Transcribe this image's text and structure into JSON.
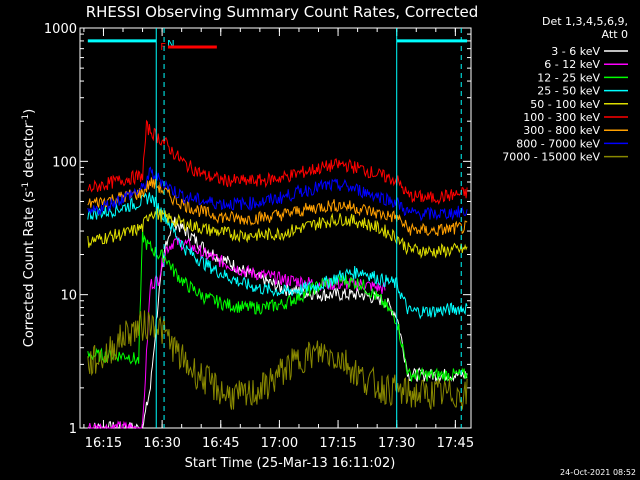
{
  "chart_data": {
    "type": "line",
    "title": "RHESSI Observing Summary Count Rates, Corrected",
    "xlabel": "Start Time (25-Mar-13 16:11:02)",
    "ylabel_main": "Corrected Count Rate (s",
    "ylabel_sup1": "-1",
    "ylabel_mid": " detector",
    "ylabel_sup2": "-1",
    "ylabel_end": ")",
    "x_range_minutes": [
      -2.0,
      98.0
    ],
    "x_tick_labels": [
      "16:15",
      "16:30",
      "16:45",
      "17:00",
      "17:15",
      "17:30",
      "17:45"
    ],
    "x_tick_minutes": [
      4,
      19,
      34,
      49,
      64,
      79,
      94
    ],
    "y_scale": "log",
    "ylim": [
      1,
      1000
    ],
    "y_tick_labels": [
      "1",
      "10",
      "100",
      "1000"
    ],
    "y_tick_values": [
      1,
      10,
      100,
      1000
    ],
    "legend_title_1": "Det 1,3,4,5,6,9,",
    "legend_title_2": "Att 0",
    "legend_placement": "right",
    "series": [
      {
        "name": "3 - 6 keV",
        "color": "#ffffff",
        "x": [
          0,
          10,
          14,
          16,
          18,
          20,
          22,
          25,
          30,
          40,
          50,
          60,
          70,
          76,
          79,
          82,
          90,
          97
        ],
        "y": [
          1,
          1,
          1,
          2,
          9,
          25,
          35,
          30,
          22,
          15,
          11,
          10,
          10,
          9,
          7,
          2.5,
          2.5,
          2.5
        ]
      },
      {
        "name": "6 - 12 keV",
        "color": "#ff00ff",
        "x": [
          0,
          10,
          14,
          16,
          18,
          20,
          22,
          25,
          30,
          40,
          50,
          60,
          70,
          76
        ],
        "y": [
          1,
          1,
          1,
          12,
          13,
          22,
          25,
          24,
          20,
          15,
          13,
          12,
          12,
          11
        ]
      },
      {
        "name": "12 - 25 keV",
        "color": "#00ff00",
        "x": [
          0,
          5,
          10,
          13,
          14,
          15,
          18,
          20,
          22,
          25,
          30,
          35,
          40,
          45,
          50,
          55,
          60,
          65,
          70,
          75,
          79,
          82,
          88,
          97
        ],
        "y": [
          3.5,
          3.5,
          3.5,
          3.2,
          28,
          24,
          20,
          19,
          15,
          12,
          9.5,
          8.5,
          8.0,
          8.0,
          8.5,
          10,
          12,
          13,
          12,
          9,
          6.5,
          2.5,
          2.5,
          2.5
        ]
      },
      {
        "name": "25 - 50 keV",
        "color": "#00ffff",
        "x": [
          0,
          5,
          10,
          14,
          16,
          18,
          20,
          22,
          25,
          30,
          35,
          40,
          45,
          50,
          55,
          60,
          65,
          70,
          75,
          79,
          82,
          88,
          97
        ],
        "y": [
          40,
          42,
          46,
          50,
          55,
          45,
          38,
          30,
          22,
          17,
          14,
          12,
          11,
          10.5,
          11,
          12,
          14,
          15,
          13,
          12,
          7.5,
          7.5,
          8
        ]
      },
      {
        "name": "50 - 100 keV",
        "color": "#dddd00",
        "x": [
          0,
          5,
          10,
          14,
          16,
          18,
          20,
          22,
          25,
          30,
          35,
          40,
          45,
          50,
          55,
          60,
          65,
          70,
          75,
          79,
          82,
          88,
          97
        ],
        "y": [
          25,
          27,
          29,
          32,
          42,
          40,
          38,
          36,
          34,
          31,
          29,
          28,
          28,
          29,
          32,
          35,
          37,
          35,
          31,
          27,
          22,
          21,
          22
        ]
      },
      {
        "name": "100 - 300 keV",
        "color": "#ff0000",
        "x": [
          0,
          5,
          10,
          14,
          15,
          17,
          20,
          22,
          25,
          30,
          35,
          40,
          45,
          50,
          55,
          60,
          65,
          70,
          75,
          79,
          82,
          88,
          97
        ],
        "y": [
          62,
          68,
          74,
          78,
          180,
          160,
          135,
          115,
          95,
          78,
          72,
          71,
          72,
          76,
          83,
          90,
          95,
          88,
          78,
          72,
          55,
          53,
          58
        ]
      },
      {
        "name": "300 - 800 keV",
        "color": "#ffa000",
        "x": [
          0,
          5,
          10,
          14,
          16,
          18,
          20,
          22,
          25,
          30,
          35,
          40,
          45,
          50,
          55,
          60,
          65,
          70,
          75,
          79,
          82,
          88,
          97
        ],
        "y": [
          48,
          51,
          55,
          58,
          70,
          65,
          58,
          52,
          47,
          41,
          38,
          37,
          38,
          40,
          43,
          46,
          47,
          44,
          40,
          38,
          31,
          30,
          32
        ]
      },
      {
        "name": "800 - 7000 keV",
        "color": "#0000ff",
        "x": [
          0,
          5,
          10,
          14,
          16,
          18,
          20,
          22,
          25,
          30,
          35,
          40,
          45,
          50,
          55,
          60,
          65,
          70,
          75,
          79,
          82,
          88,
          97
        ],
        "y": [
          40,
          47,
          55,
          62,
          82,
          75,
          67,
          60,
          54,
          50,
          48,
          48,
          50,
          54,
          60,
          65,
          66,
          60,
          54,
          49,
          41,
          40,
          42
        ]
      },
      {
        "name": "7000 - 15000 keV",
        "color": "#888800",
        "x": [
          0,
          5,
          10,
          14,
          17,
          20,
          22,
          25,
          30,
          35,
          40,
          45,
          50,
          55,
          60,
          65,
          70,
          75,
          79,
          82,
          88,
          97
        ],
        "y": [
          3,
          3.6,
          5.2,
          5.8,
          6.2,
          5,
          4.0,
          3.0,
          2.3,
          1.8,
          1.7,
          2.0,
          2.7,
          3.4,
          3.7,
          3.3,
          2.4,
          2.0,
          1.9,
          1.8,
          1.8,
          1.8
        ]
      }
    ],
    "annotations": [
      {
        "label": "",
        "type": "saa-bar",
        "x": [
          0,
          17.5
        ],
        "y": 800,
        "color": "#00ffff"
      },
      {
        "label": "",
        "type": "saa-bar",
        "x": [
          79,
          97
        ],
        "y": 800,
        "color": "#00ffff"
      },
      {
        "label": "N",
        "type": "night-marker",
        "x": 19.5,
        "y": 760,
        "color": "#00ffff"
      },
      {
        "label": "F",
        "type": "flare-bar",
        "x": [
          20.5,
          33
        ],
        "y": 720,
        "color": "#ff0000"
      },
      {
        "label": "",
        "type": "vline",
        "x": 17.5,
        "color": "#00ffff"
      },
      {
        "label": "",
        "type": "vline",
        "x": 19.5,
        "color": "#00ffff",
        "dashed": true
      },
      {
        "label": "",
        "type": "vline",
        "x": 79,
        "color": "#00ffff"
      },
      {
        "label": "",
        "type": "vline",
        "x": 95.5,
        "color": "#00ffff",
        "dashed": true
      }
    ],
    "timestamp": "24-Oct-2021 08:52"
  }
}
